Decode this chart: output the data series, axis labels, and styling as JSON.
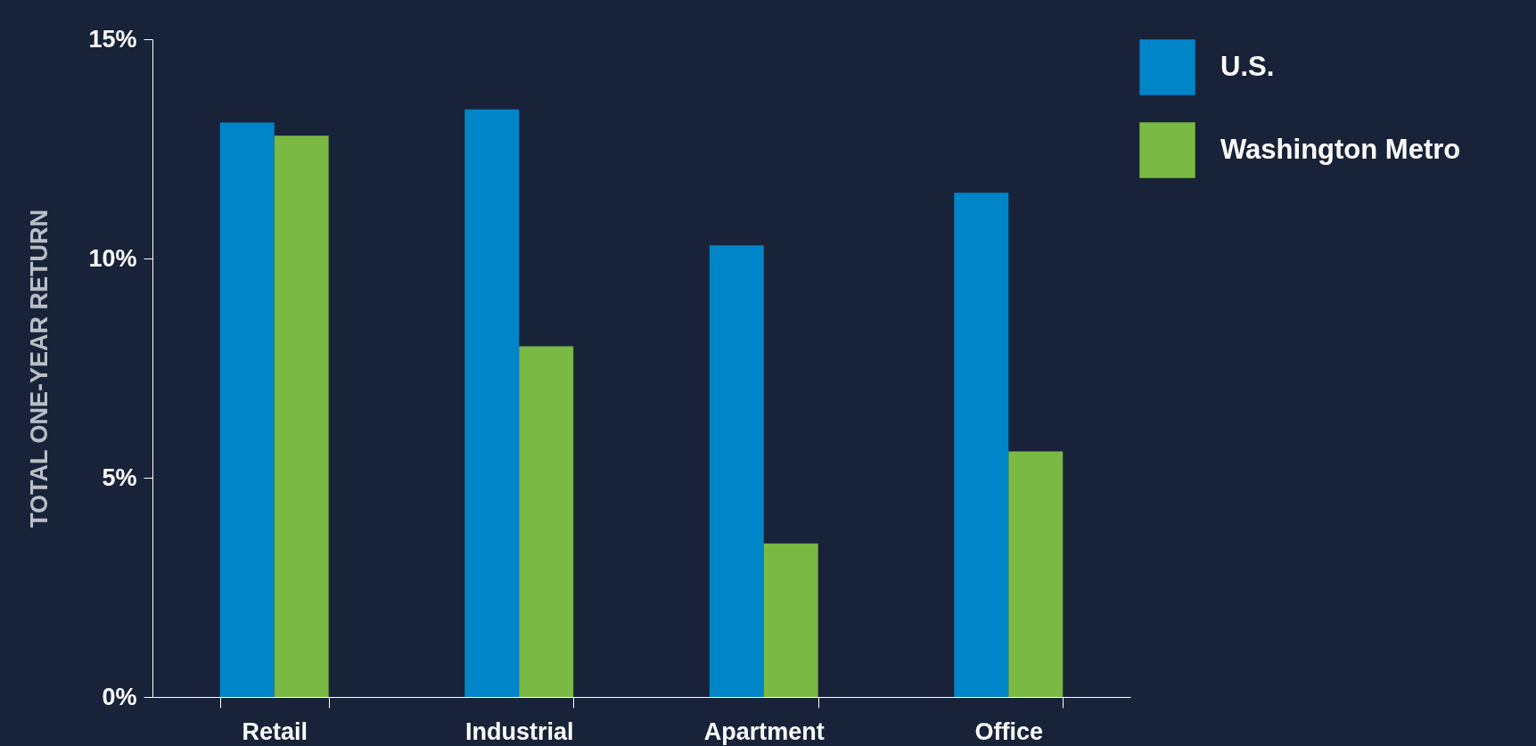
{
  "chart_data": {
    "type": "bar",
    "ylabel": "TOTAL ONE-YEAR RETURN",
    "categories": [
      "Retail",
      "Industrial",
      "Apartment",
      "Office"
    ],
    "series": [
      {
        "name": "U.S.",
        "color": "#0085c8",
        "values": [
          13.1,
          13.4,
          10.3,
          11.5
        ]
      },
      {
        "name": "Washington Metro",
        "color": "#7ab943",
        "values": [
          12.8,
          8.0,
          3.5,
          5.6
        ]
      }
    ],
    "ylim": [
      0,
      15
    ],
    "yticks": [
      {
        "value": 0,
        "label": "0%"
      },
      {
        "value": 5,
        "label": "5%"
      },
      {
        "value": 10,
        "label": "10%"
      },
      {
        "value": 15,
        "label": "15%"
      }
    ],
    "legend": "top right"
  }
}
